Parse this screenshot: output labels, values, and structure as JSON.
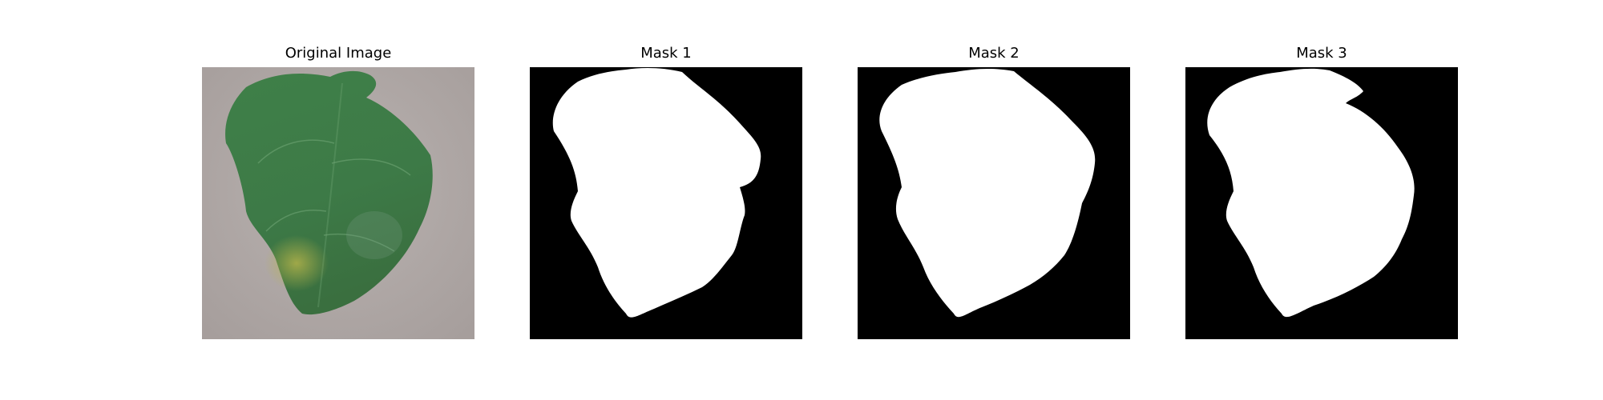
{
  "figure": {
    "panels": [
      {
        "title": "Original Image"
      },
      {
        "title": "Mask 1"
      },
      {
        "title": "Mask 2"
      },
      {
        "title": "Mask 3"
      }
    ]
  },
  "colors": {
    "mask_background": "#000000",
    "mask_foreground": "#ffffff",
    "photo_background": "#b1aaa8",
    "leaf_green": "#3b7a45",
    "leaf_yellow": "#a6a540"
  }
}
